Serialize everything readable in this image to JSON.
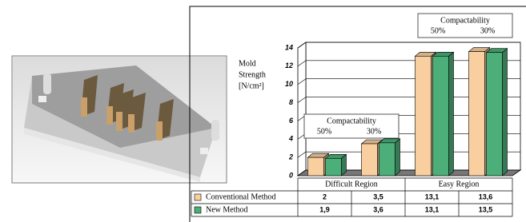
{
  "chart_data": {
    "type": "bar3d",
    "y_label": [
      "Mold",
      "Strength",
      "[N/cm²]"
    ],
    "categories": [
      "50%",
      "30%",
      "50%",
      "30%"
    ],
    "groups": [
      {
        "label": "Difficult Region",
        "annotation": "Compactability"
      },
      {
        "label": "Easy Region",
        "annotation": "Compactability"
      }
    ],
    "series": [
      {
        "name": "Conventional Method",
        "color": "#f9cfa0",
        "values": [
          2,
          3.5,
          13.1,
          13.6
        ],
        "value_labels": [
          "2",
          "3,5",
          "13,1",
          "13,6"
        ]
      },
      {
        "name": "New Method",
        "color": "#4cae78",
        "values": [
          1.9,
          3.6,
          13.1,
          13.5
        ],
        "value_labels": [
          "1,9",
          "3,6",
          "13,1",
          "13,5"
        ]
      }
    ],
    "ylim": [
      0,
      14
    ],
    "yticks": [
      0,
      2,
      4,
      6,
      8,
      10,
      12,
      14
    ],
    "grid": true
  }
}
